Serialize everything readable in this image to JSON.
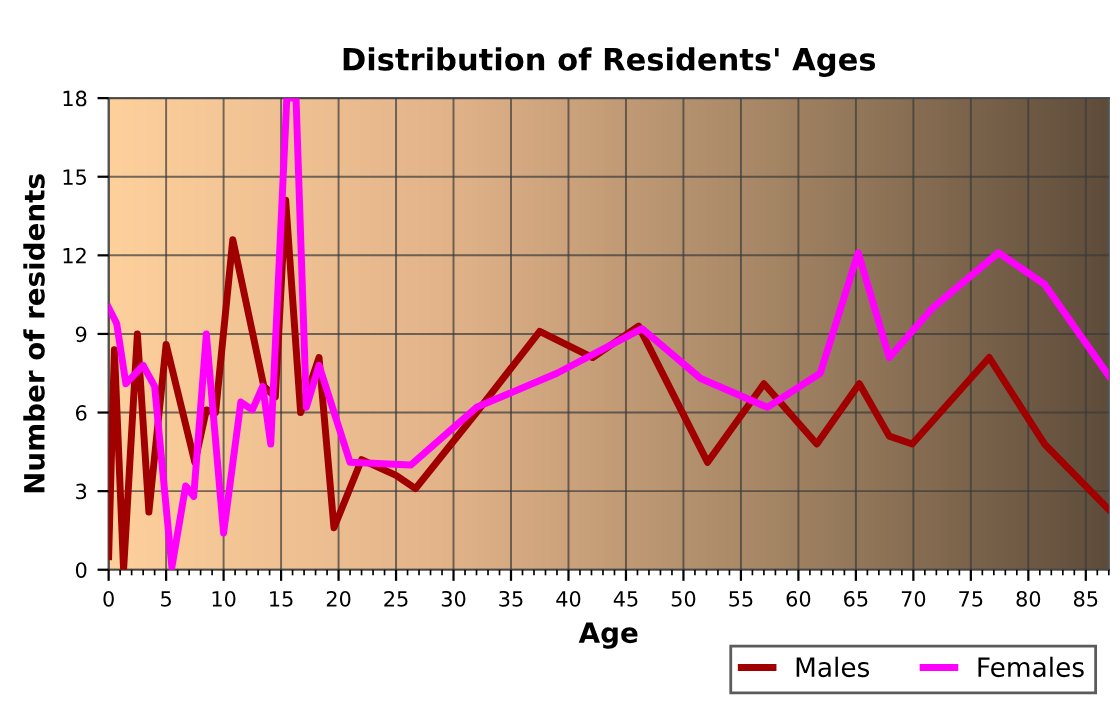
{
  "chart_data": {
    "type": "line",
    "title": "Distribution of Residents' Ages",
    "xlabel": "Age",
    "ylabel": "Number of residents",
    "xlim": [
      0,
      87
    ],
    "ylim": [
      0,
      18
    ],
    "xticks": [
      0,
      5,
      10,
      15,
      20,
      25,
      30,
      35,
      40,
      45,
      50,
      55,
      60,
      65,
      70,
      75,
      80,
      85
    ],
    "yticks": [
      0,
      3,
      6,
      9,
      12,
      15,
      18
    ],
    "grid": true,
    "legend": "bottom right",
    "series": [
      {
        "name": "Males",
        "color": "#a00000",
        "x": [
          0,
          0.5,
          1.3,
          2.5,
          3.5,
          5,
          7.5,
          8.5,
          9.3,
          10.8,
          13.5,
          14.5,
          15.4,
          16.7,
          18.3,
          19.6,
          22,
          25,
          26.7,
          32,
          37.5,
          42.1,
          46.1,
          52.1,
          57,
          61.6,
          65.3,
          67.9,
          69.9,
          76.6,
          81.4,
          87
        ],
        "values": [
          0.5,
          8.4,
          0,
          9,
          2.2,
          8.6,
          4.1,
          6.1,
          6,
          12.6,
          7,
          6.6,
          14.1,
          6,
          8.1,
          1.6,
          4.2,
          3.6,
          3.1,
          6,
          9.1,
          8.1,
          9.3,
          4.1,
          7.1,
          4.8,
          7.1,
          5.1,
          4.8,
          8.1,
          4.8,
          2.3
        ]
      },
      {
        "name": "Females",
        "color": "#ff00ff",
        "x": [
          0,
          0.7,
          1.5,
          3,
          4,
          5.5,
          6.7,
          7.4,
          8.5,
          10,
          11.5,
          12.5,
          13.4,
          14.1,
          15.5,
          16.3,
          17.2,
          18.3,
          21,
          26.3,
          32,
          39,
          46.4,
          51.5,
          57.3,
          61.9,
          65.2,
          67.9,
          71.7,
          77.4,
          81.4,
          87
        ],
        "values": [
          10,
          9.4,
          7.1,
          7.8,
          7,
          0.1,
          3.2,
          2.8,
          9,
          1.4,
          6.4,
          6.1,
          7,
          4.8,
          18,
          18,
          6.2,
          7.8,
          4.1,
          4,
          6.2,
          7.5,
          9.2,
          7.3,
          6.2,
          7.5,
          12.1,
          8.1,
          10,
          12.1,
          10.9,
          7.4
        ]
      }
    ]
  }
}
